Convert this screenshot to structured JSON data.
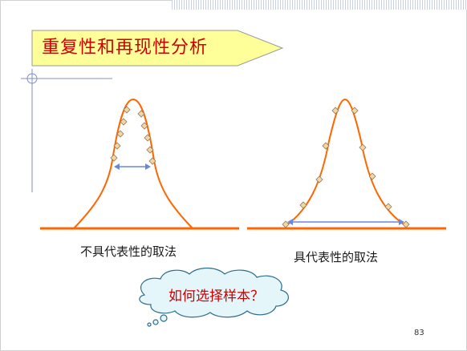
{
  "slide": {
    "title": "重复性和再现性分析",
    "left_label": "不具代表性的取法",
    "right_label": "具代表性的取法",
    "cloud_text": "如何选择样本？",
    "page_number": "83"
  },
  "colors": {
    "curve": "#ff6600",
    "title_text": "#cc0000",
    "title_fill": "#ffff99",
    "diamond_fill": "#f5d5a0",
    "range_arrow": "#6a88d8",
    "cloud_fill": "#e5f6fa",
    "cloud_stroke": "#2c6e8a"
  }
}
